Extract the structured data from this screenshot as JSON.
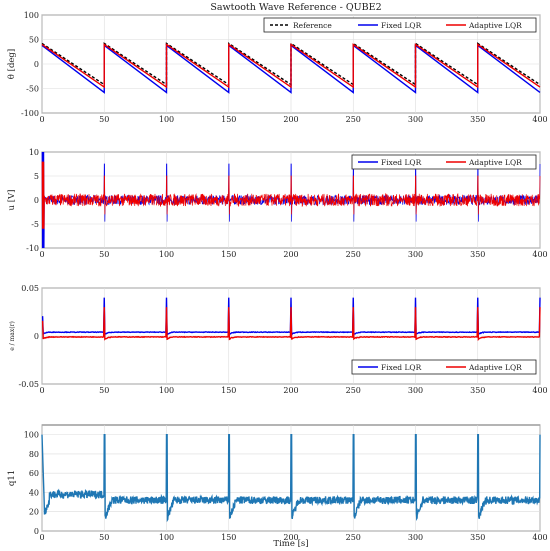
{
  "figure": {
    "title": "Sawtooth Wave Reference - QUBE2",
    "xlabel": "Time [s]"
  },
  "chart_data": [
    {
      "type": "line",
      "ylabel": "θ [deg]",
      "xlim": [
        0,
        400
      ],
      "ylim": [
        -100,
        100
      ],
      "xticks": [
        0,
        50,
        100,
        150,
        200,
        250,
        300,
        350,
        400
      ],
      "yticks": [
        -100,
        -50,
        0,
        50,
        100
      ],
      "grid": true,
      "legend": "top-right",
      "series": [
        {
          "name": "Reference",
          "color": "#000000",
          "dash": true,
          "shape": "sawtooth",
          "period": 50,
          "x": [
            0,
            50
          ],
          "y": [
            42,
            -42
          ]
        },
        {
          "name": "Fixed LQR",
          "color": "#0000ee",
          "shape": "sawtooth",
          "period": 50,
          "x": [
            0,
            50
          ],
          "y": [
            38,
            -58
          ]
        },
        {
          "name": "Adaptive LQR",
          "color": "#ee0000",
          "shape": "sawtooth",
          "period": 50,
          "x": [
            0,
            50
          ],
          "y": [
            40,
            -47
          ]
        }
      ]
    },
    {
      "type": "line",
      "ylabel": "u [V]",
      "xlim": [
        0,
        400
      ],
      "ylim": [
        -10,
        10
      ],
      "xticks": [
        0,
        50,
        100,
        150,
        200,
        250,
        300,
        350,
        400
      ],
      "yticks": [
        -10,
        -5,
        0,
        5,
        10
      ],
      "grid": true,
      "legend": "top-right",
      "series": [
        {
          "name": "Fixed LQR",
          "color": "#0000ee",
          "shape": "noise",
          "level": 0,
          "noise": 1.0,
          "spike": 7.5,
          "initial": [
            10,
            -10
          ]
        },
        {
          "name": "Adaptive LQR",
          "color": "#ee0000",
          "shape": "noise",
          "level": 0,
          "noise": 1.3,
          "spike": 5,
          "initial": [
            8,
            -6
          ]
        }
      ]
    },
    {
      "type": "line",
      "ylabel": "e / max(r)",
      "xlim": [
        0,
        400
      ],
      "ylim": [
        -0.05,
        0.05
      ],
      "xticks": [
        0,
        50,
        100,
        150,
        200,
        250,
        300,
        350,
        400
      ],
      "yticks": [
        -0.05,
        0,
        0.05
      ],
      "grid": true,
      "legend": "bottom-right",
      "series": [
        {
          "name": "Fixed LQR",
          "color": "#0000ee",
          "shape": "decay",
          "period": 50,
          "spike": 0.04,
          "base": 0.004
        },
        {
          "name": "Adaptive LQR",
          "color": "#ee0000",
          "shape": "decay",
          "period": 50,
          "spike": 0.03,
          "base": -0.001
        }
      ]
    },
    {
      "type": "line",
      "ylabel": "q11",
      "xlim": [
        0,
        400
      ],
      "ylim": [
        0,
        110
      ],
      "xticks": [
        0,
        50,
        100,
        150,
        200,
        250,
        300,
        350,
        400
      ],
      "yticks": [
        0,
        20,
        40,
        60,
        80,
        100
      ],
      "grid": true,
      "series": [
        {
          "color": "#1f77b4",
          "shape": "gain",
          "period": 50,
          "spike": 100,
          "min": 12,
          "level": 32,
          "noise": 4
        }
      ]
    }
  ]
}
